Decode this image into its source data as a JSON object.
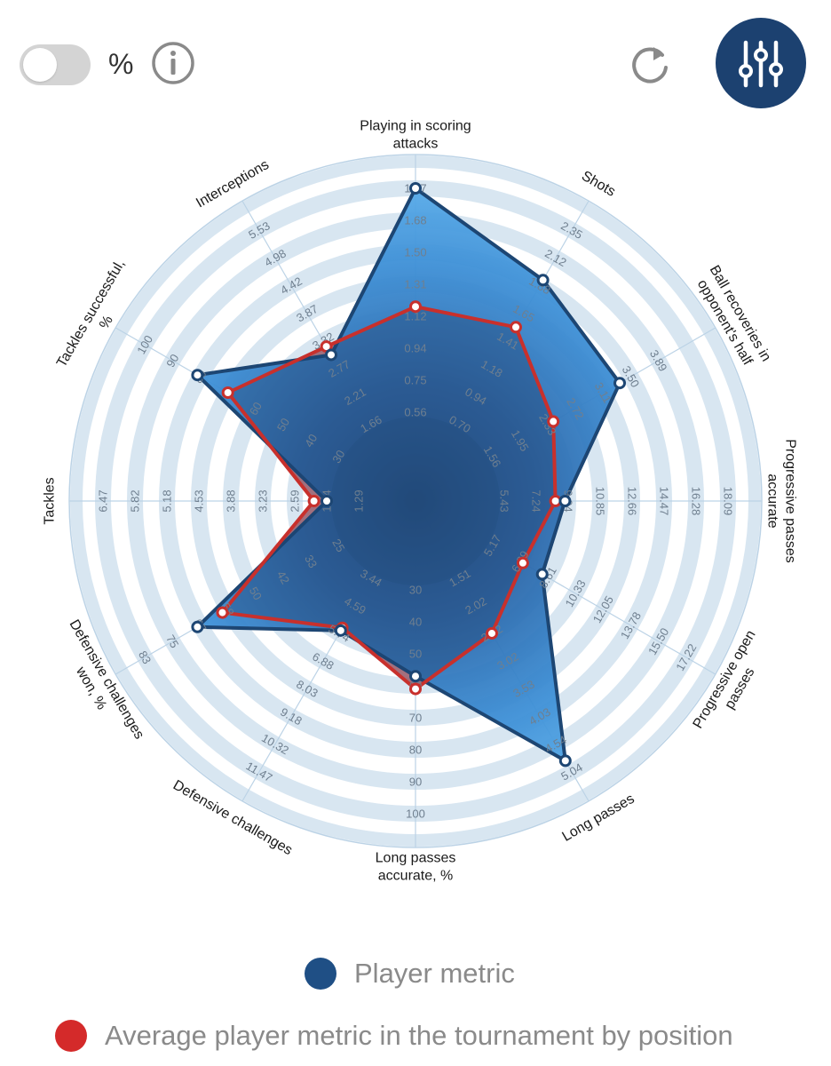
{
  "controls": {
    "percent_label": "%",
    "info_icon": "info-icon",
    "refresh_icon": "refresh-icon",
    "settings_icon": "sliders-icon"
  },
  "colors": {
    "player": "#1f4f85",
    "average": "#d42a2a",
    "ring_band": "#d8e6f1",
    "accent_button": "#1c4170"
  },
  "legend": {
    "player_label": "Player metric",
    "average_label": "Average player metric in the tournament by position"
  },
  "chart_data": {
    "type": "radar",
    "axes": [
      {
        "label": [
          "Playing in scoring",
          "attacks"
        ],
        "ticks": [
          "0.56",
          "0.75",
          "0.94",
          "1.12",
          "1.31",
          "1.50",
          "1.68",
          "1.87"
        ],
        "player_rank": 8,
        "average_rank": 4.3
      },
      {
        "label": [
          "Shots"
        ],
        "ticks": [
          "0.70",
          "0.94",
          "1.18",
          "1.41",
          "1.65",
          "1.88",
          "2.12",
          "2.35"
        ],
        "player_rank": 6.2,
        "average_rank": 4.5
      },
      {
        "label": [
          "Ball recoveries in",
          "opponent's half"
        ],
        "ticks": [
          "1.56",
          "1.95",
          "2.33",
          "2.72",
          "3.11",
          "3.50",
          "3.89"
        ],
        "player_rank": 5.6,
        "average_rank": 3.2
      },
      {
        "label": [
          "Progressive passes",
          "accurate"
        ],
        "ticks": [
          "5.43",
          "7.24",
          "9.04",
          "10.85",
          "12.66",
          "14.47",
          "16.28",
          "18.09"
        ],
        "player_rank": 2.9,
        "average_rank": 2.6
      },
      {
        "label": [
          "Progressive open",
          "passes"
        ],
        "ticks": [
          "5.17",
          "6.89",
          "8.61",
          "10.33",
          "12.05",
          "13.78",
          "15.50",
          "17.22"
        ],
        "player_rank": 2.8,
        "average_rank": 2.1
      },
      {
        "label": [
          "Long passes"
        ],
        "ticks": [
          "1.51",
          "2.02",
          "2.52",
          "3.02",
          "3.53",
          "4.03",
          "4.54",
          "5.04"
        ],
        "player_rank": 7.6,
        "average_rank": 3.0
      },
      {
        "label": [
          "Long passes",
          "accurate, %"
        ],
        "ticks": [
          "30",
          "40",
          "50",
          "60",
          "70",
          "80",
          "90",
          "100"
        ],
        "player_rank": 3.7,
        "average_rank": 4.1
      },
      {
        "label": [
          "Defensive challenges"
        ],
        "ticks": [
          "3.44",
          "4.59",
          "5.74",
          "6.88",
          "8.03",
          "9.18",
          "10.32",
          "11.47"
        ],
        "player_rank": 2.9,
        "average_rank": 2.8
      },
      {
        "label": [
          "Defensive challenges",
          "won, %"
        ],
        "ticks": [
          "25",
          "33",
          "42",
          "50",
          "58",
          "67",
          "75",
          "83"
        ],
        "player_rank": 6.1,
        "average_rank": 5.2
      },
      {
        "label": [
          "Tackles"
        ],
        "ticks": [
          "1.29",
          "1.94",
          "2.59",
          "3.23",
          "3.88",
          "4.53",
          "5.18",
          "5.82",
          "6.47"
        ],
        "player_rank": 1.0,
        "average_rank": 1.4
      },
      {
        "label": [
          "Tackles successful,",
          "%"
        ],
        "ticks": [
          "30",
          "40",
          "50",
          "60",
          "70",
          "80",
          "90",
          "100"
        ],
        "player_rank": 6.1,
        "average_rank": 5.0
      },
      {
        "label": [
          "Interceptions"
        ],
        "ticks": [
          "1.66",
          "2.21",
          "2.77",
          "3.32",
          "3.87",
          "4.42",
          "4.98",
          "5.53"
        ],
        "player_rank": 3.5,
        "average_rank": 3.8
      }
    ],
    "scale_rings": 8,
    "series": [
      {
        "name": "Player metric",
        "color": "#1f4f85"
      },
      {
        "name": "Average player metric in the tournament by position",
        "color": "#d42a2a"
      }
    ]
  }
}
